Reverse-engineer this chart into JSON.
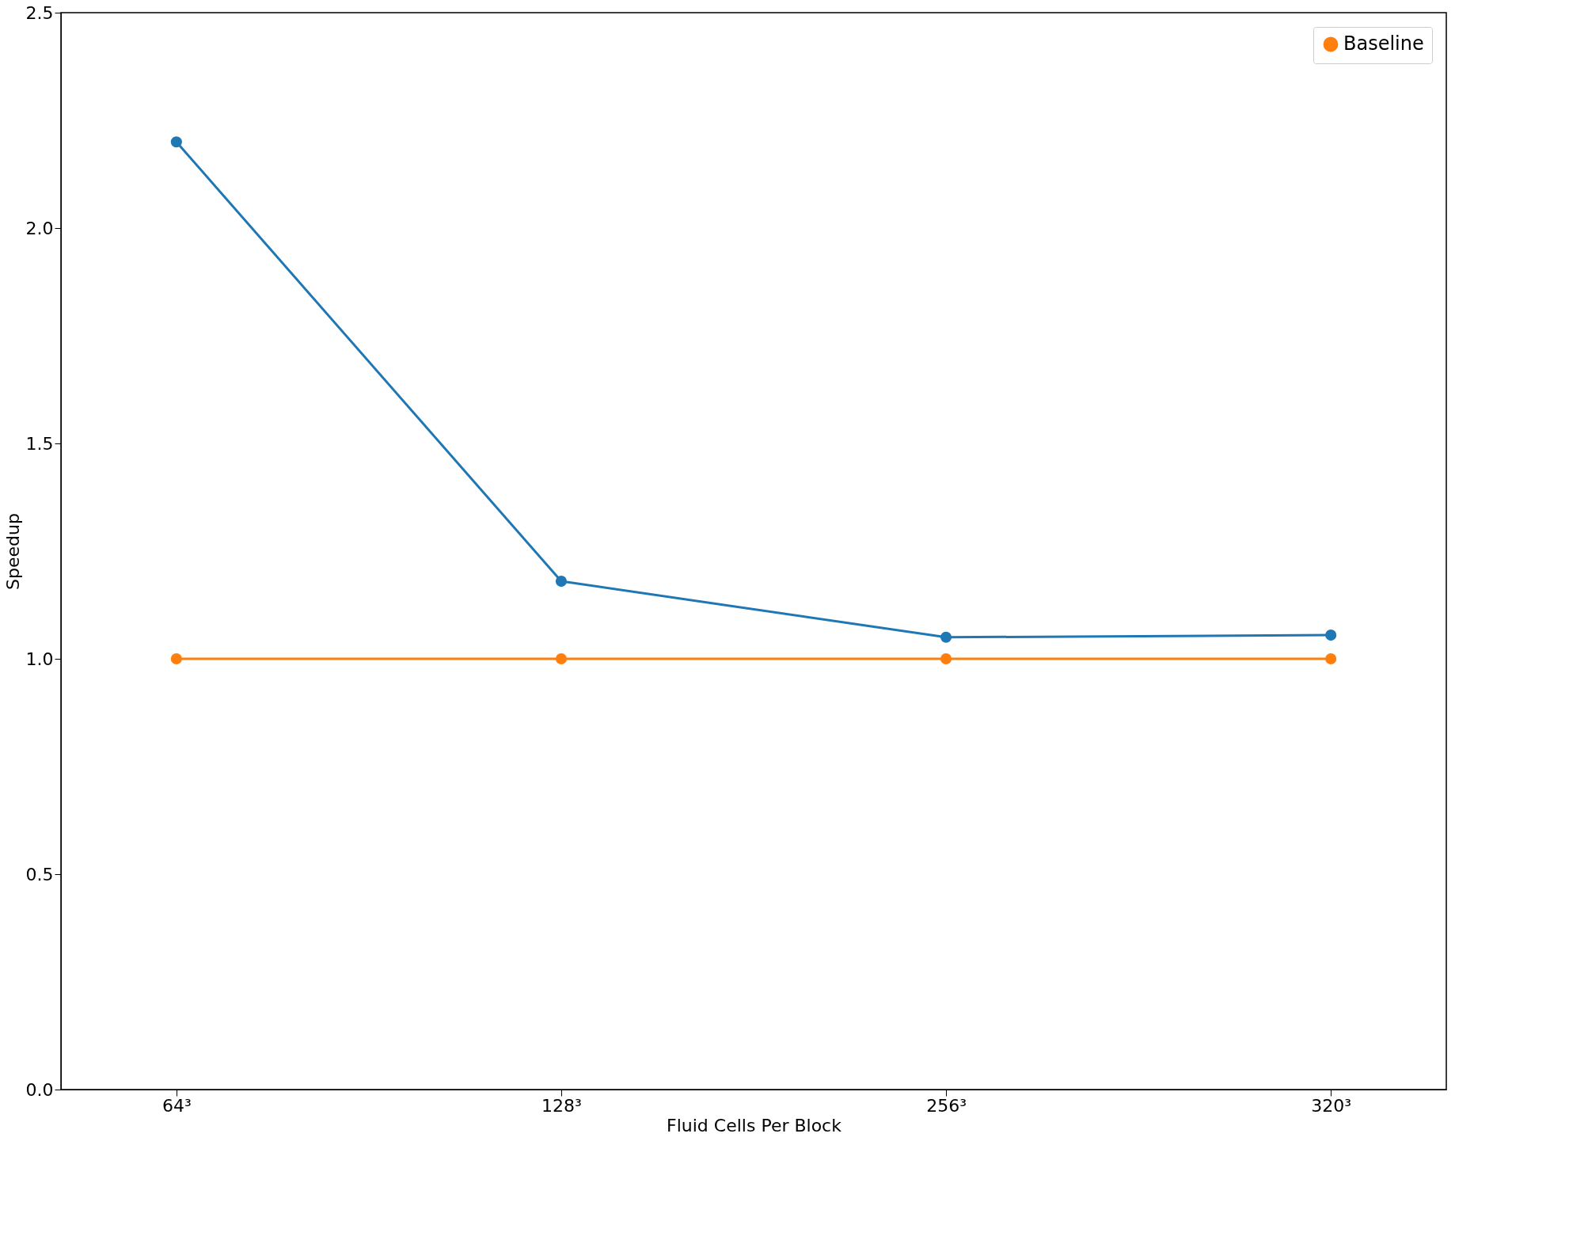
{
  "chart_data": {
    "type": "line",
    "xlabel": "Fluid Cells Per Block",
    "ylabel": "Speedup",
    "categories": [
      "64³",
      "128³",
      "256³",
      "320³"
    ],
    "series": [
      {
        "color": "#1f77b4",
        "values": [
          2.2,
          1.18,
          1.05,
          1.055
        ]
      },
      {
        "name": "Baseline",
        "color": "#ff7f0e",
        "values": [
          1.0,
          1.0,
          1.0,
          1.0
        ]
      }
    ],
    "ylim": [
      0,
      2.5
    ],
    "yticks": [
      {
        "value": 0,
        "label": "0.0"
      },
      0.5,
      {
        "value": 1,
        "label": "1.0"
      },
      1.5,
      {
        "value": 2,
        "label": "2.0"
      },
      2.5
    ],
    "grid": false,
    "legend": "top right",
    "marker": "circle",
    "line_style": "solid"
  }
}
